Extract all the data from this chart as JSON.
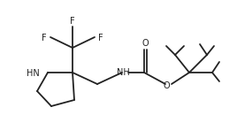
{
  "bg_color": "#ffffff",
  "line_color": "#222222",
  "line_width": 1.3,
  "font_size": 7.0,
  "figsize": [
    2.68,
    1.56
  ],
  "dpi": 100,
  "xlim": [
    0,
    268
  ],
  "ylim": [
    0,
    156
  ]
}
